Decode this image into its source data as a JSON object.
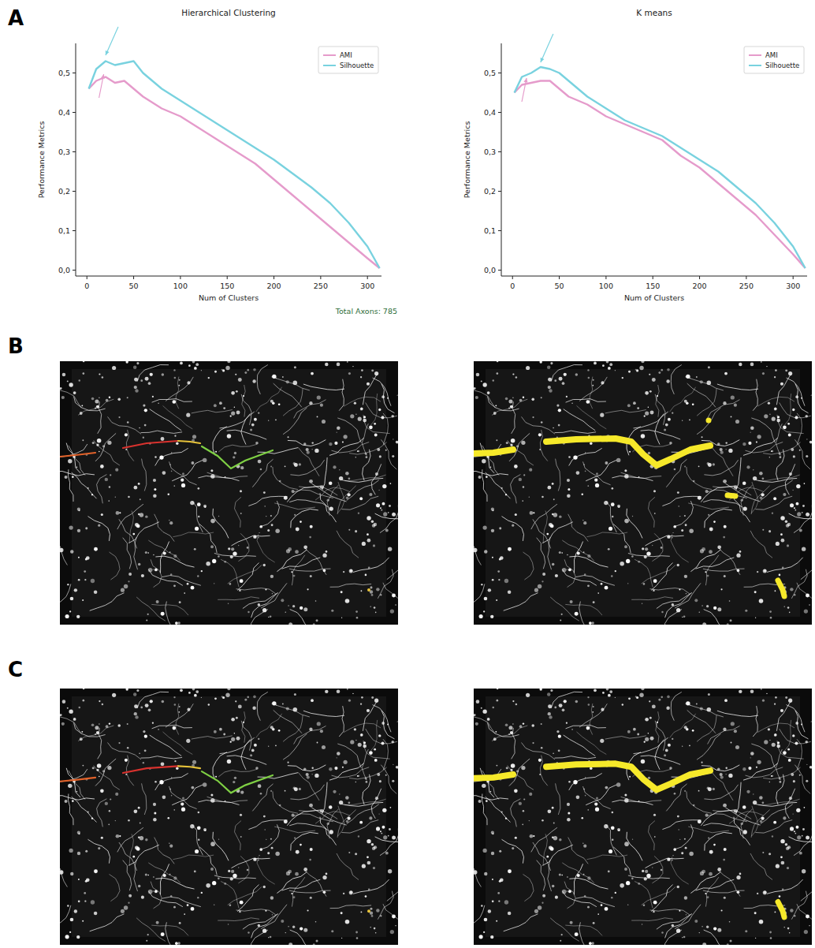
{
  "panel_labels": [
    "A",
    "B",
    "C"
  ],
  "chart_data": [
    {
      "type": "line",
      "title": "Hierarchical Clustering",
      "xlabel": "Num of Clusters",
      "ylabel": "Performance Metrics",
      "annotation_text": "Total Axons: 785",
      "x": [
        2,
        10,
        20,
        30,
        40,
        50,
        60,
        80,
        100,
        120,
        140,
        160,
        180,
        200,
        220,
        240,
        260,
        280,
        300,
        313
      ],
      "series": [
        {
          "name": "AMI",
          "color": "#e59bcb",
          "values": [
            0.46,
            0.48,
            0.49,
            0.475,
            0.48,
            0.46,
            0.44,
            0.41,
            0.39,
            0.36,
            0.33,
            0.3,
            0.27,
            0.23,
            0.19,
            0.15,
            0.11,
            0.07,
            0.03,
            0.005
          ]
        },
        {
          "name": "Silhouette",
          "color": "#79d2df",
          "values": [
            0.46,
            0.51,
            0.53,
            0.52,
            0.525,
            0.53,
            0.5,
            0.46,
            0.43,
            0.4,
            0.37,
            0.34,
            0.31,
            0.28,
            0.245,
            0.21,
            0.17,
            0.12,
            0.06,
            0.005
          ]
        }
      ],
      "annotations": [
        {
          "series": "Silhouette",
          "x": 20,
          "y": 0.545
        },
        {
          "series": "AMI",
          "x": 18,
          "y": 0.497
        }
      ],
      "xlim": [
        -12,
        315
      ],
      "ylim": [
        -0.015,
        0.575
      ],
      "xticks": [
        0,
        50,
        100,
        150,
        200,
        250,
        300
      ],
      "yticks": [
        {
          "value": 0,
          "label": "0,0"
        },
        {
          "value": 0.1,
          "label": "0,1"
        },
        {
          "value": 0.2,
          "label": "0,2"
        },
        {
          "value": 0.3,
          "label": "0,3"
        },
        {
          "value": 0.4,
          "label": "0,4"
        },
        {
          "value": 0.5,
          "label": "0,5"
        }
      ],
      "legend": "upper right",
      "grid": false
    },
    {
      "type": "line",
      "title": "K means",
      "xlabel": "Num of Clusters",
      "ylabel": "Performance Metrics",
      "x": [
        2,
        10,
        20,
        30,
        40,
        50,
        60,
        80,
        100,
        120,
        140,
        160,
        180,
        200,
        220,
        240,
        260,
        280,
        300,
        313
      ],
      "series": [
        {
          "name": "AMI",
          "color": "#e59bcb",
          "values": [
            0.45,
            0.47,
            0.475,
            0.48,
            0.48,
            0.46,
            0.44,
            0.42,
            0.39,
            0.37,
            0.35,
            0.33,
            0.29,
            0.26,
            0.22,
            0.18,
            0.14,
            0.09,
            0.04,
            0.005
          ]
        },
        {
          "name": "Silhouette",
          "color": "#79d2df",
          "values": [
            0.45,
            0.49,
            0.5,
            0.515,
            0.51,
            0.5,
            0.48,
            0.44,
            0.41,
            0.38,
            0.36,
            0.34,
            0.31,
            0.28,
            0.25,
            0.21,
            0.17,
            0.12,
            0.06,
            0.005
          ]
        }
      ],
      "annotations": [
        {
          "series": "Silhouette",
          "x": 30,
          "y": 0.527
        },
        {
          "series": "AMI",
          "x": 15,
          "y": 0.487
        }
      ],
      "xlim": [
        -12,
        315
      ],
      "ylim": [
        -0.015,
        0.575
      ],
      "xticks": [
        0,
        50,
        100,
        150,
        200,
        250,
        300
      ],
      "yticks": [
        {
          "value": 0,
          "label": "0,0"
        },
        {
          "value": 0.1,
          "label": "0,1"
        },
        {
          "value": 0.2,
          "label": "0,2"
        },
        {
          "value": 0.3,
          "label": "0,3"
        },
        {
          "value": 0.4,
          "label": "0,4"
        },
        {
          "value": 0.5,
          "label": "0,5"
        }
      ],
      "legend": "upper right",
      "grid": false
    }
  ]
}
